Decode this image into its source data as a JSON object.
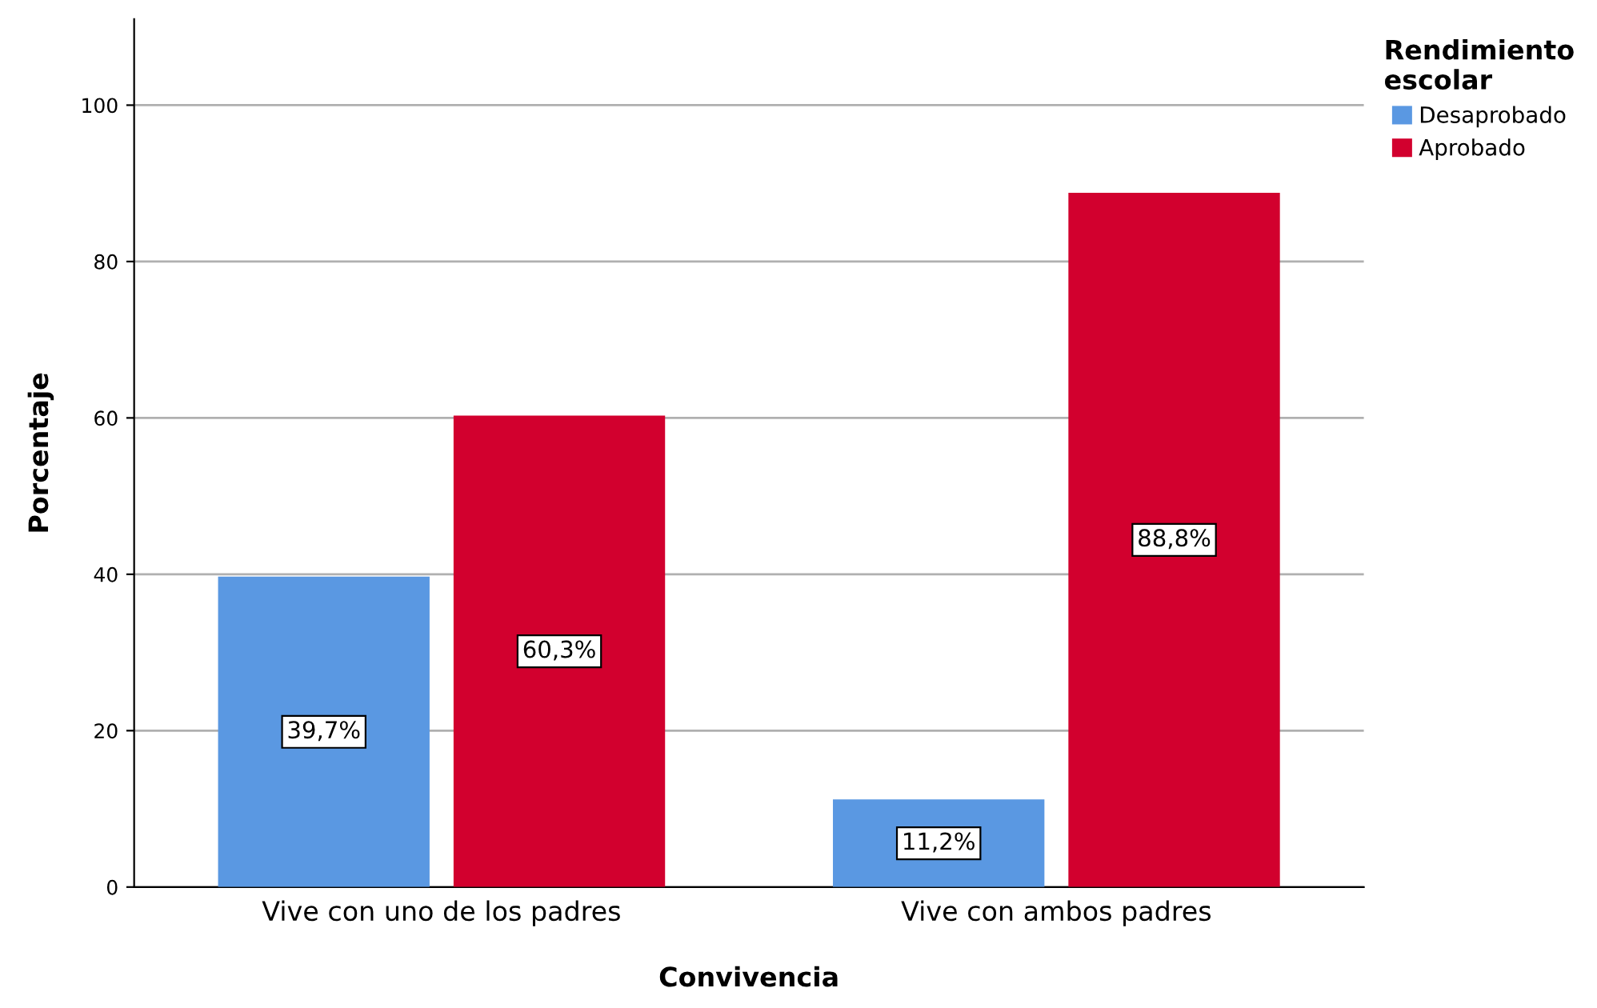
{
  "chart_data": {
    "type": "bar",
    "xlabel": "Convivencia",
    "ylabel": "Porcentaje",
    "legend_title": "Rendimiento\nescolar",
    "categories": [
      "Vive con uno de los padres",
      "Vive con ambos padres"
    ],
    "series": [
      {
        "name": "Desaprobado",
        "color": "#5a98e2",
        "values": [
          39.7,
          11.2
        ],
        "value_labels": [
          "39,7%",
          "11,2%"
        ]
      },
      {
        "name": "Aprobado",
        "color": "#d2002e",
        "values": [
          60.3,
          88.8
        ],
        "value_labels": [
          "60,3%",
          "88,8%"
        ]
      }
    ],
    "ylim": [
      0,
      111
    ],
    "yticks": [
      0,
      20,
      40,
      60,
      80,
      100
    ],
    "grid": "y",
    "legend": "top right"
  }
}
